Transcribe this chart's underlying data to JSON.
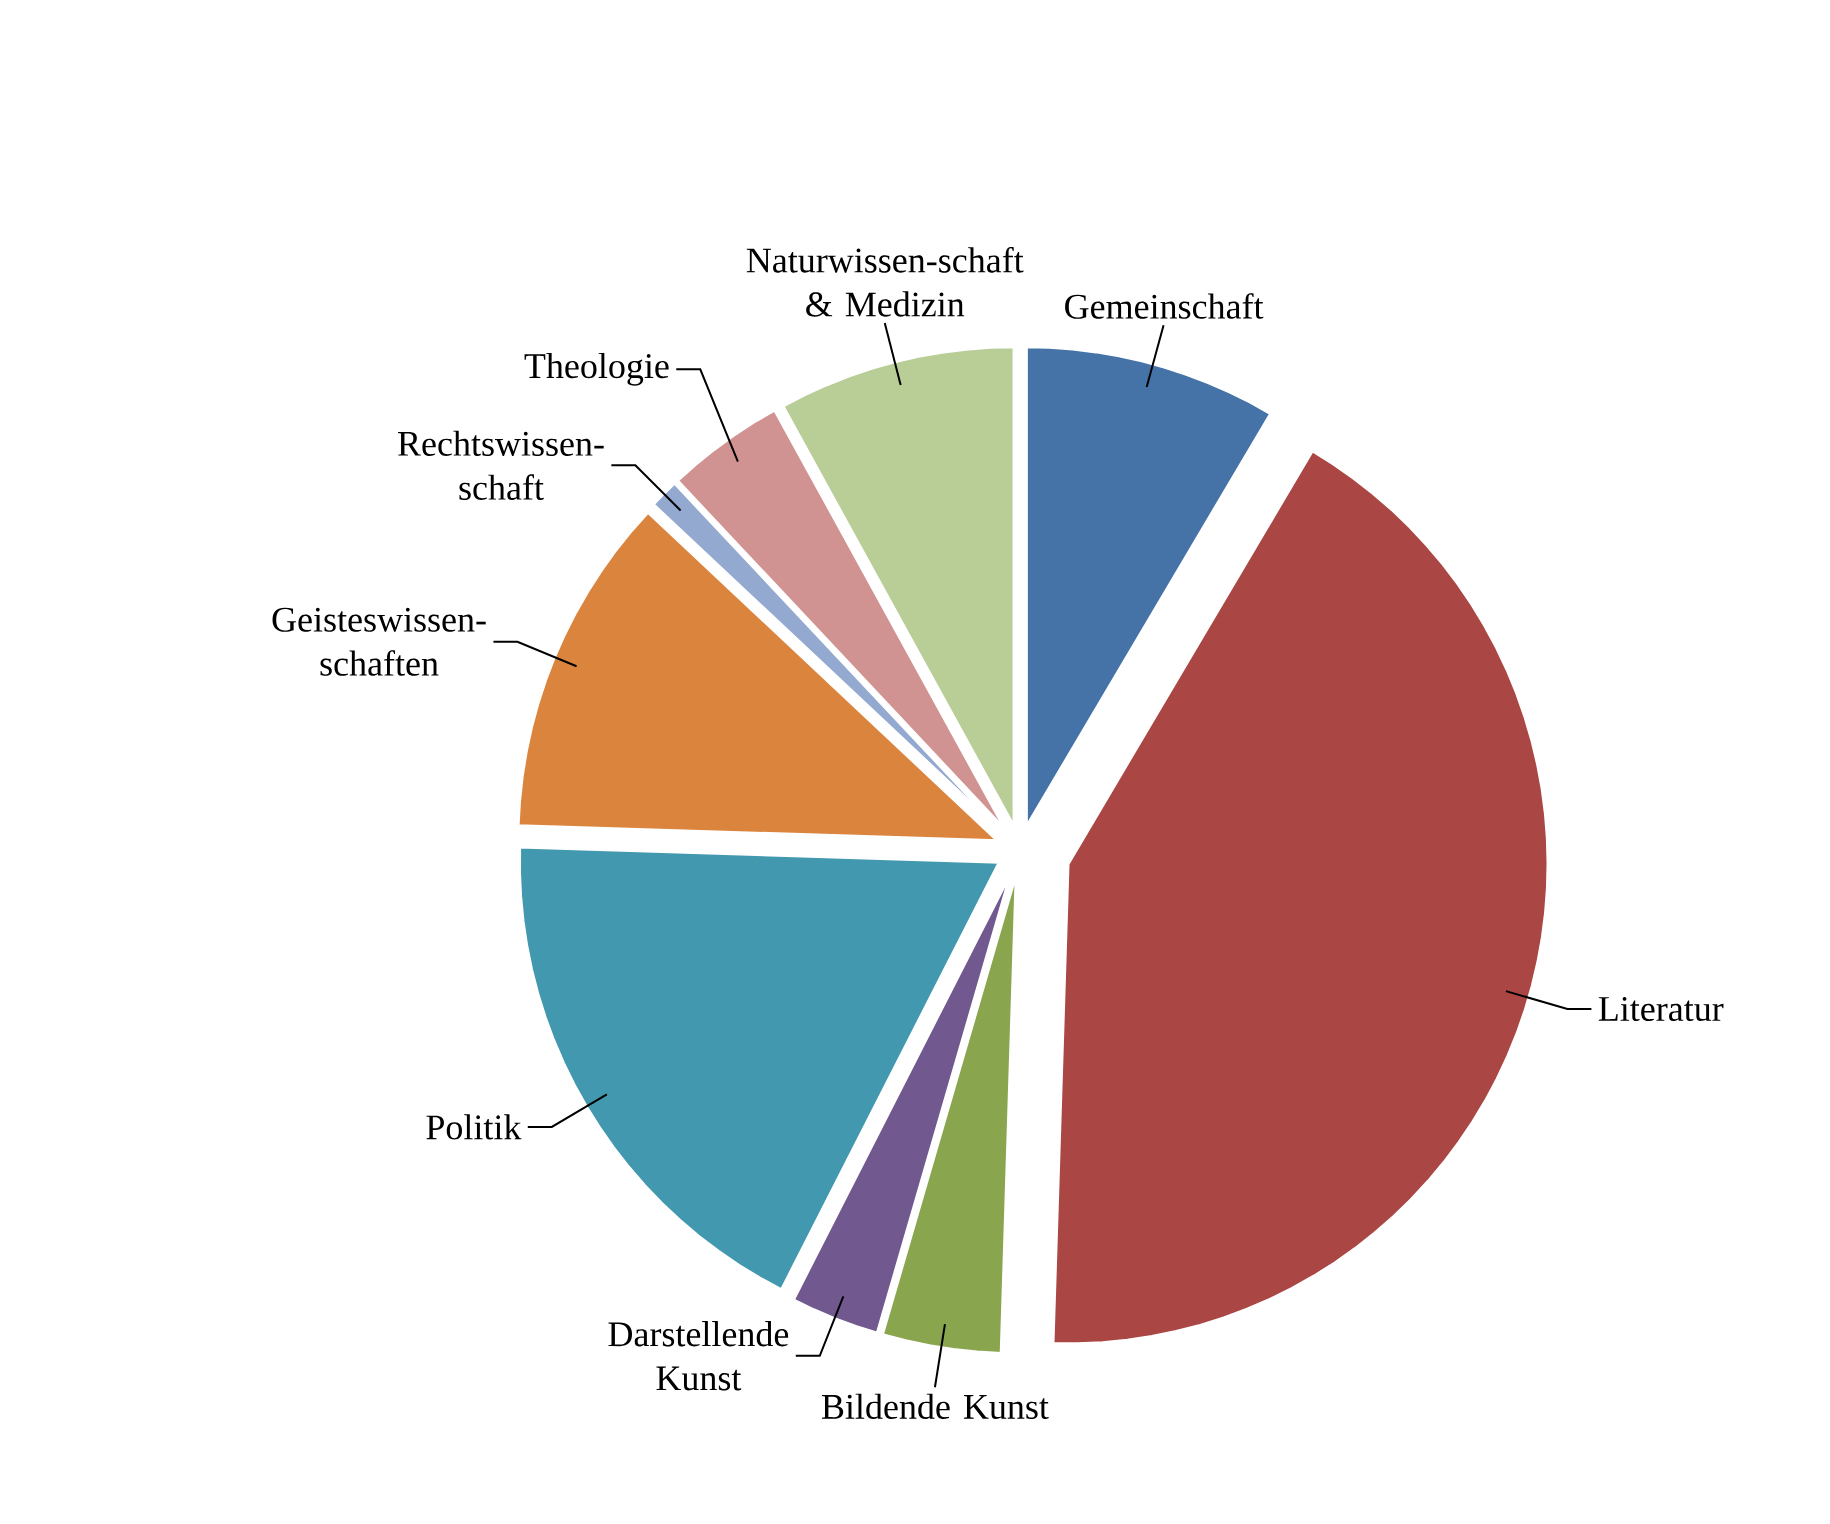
{
  "chart_data": {
    "type": "pie",
    "categories": [
      "Gemeinschaft",
      "Literatur",
      "Bildende Kunst",
      "Darstellende Kunst",
      "Politik",
      "Geisteswissen-schaften",
      "Rechtswissen-schaft",
      "Theologie",
      "Naturwissen-schaft & Medizin"
    ],
    "values": [
      8.5,
      42,
      4,
      3,
      18,
      11.5,
      1,
      4,
      8
    ],
    "colors": [
      "#4572a7",
      "#aa4643",
      "#89a54e",
      "#71588f",
      "#4198af",
      "#db843d",
      "#93a9cf",
      "#d19392",
      "#b9cd96"
    ]
  }
}
